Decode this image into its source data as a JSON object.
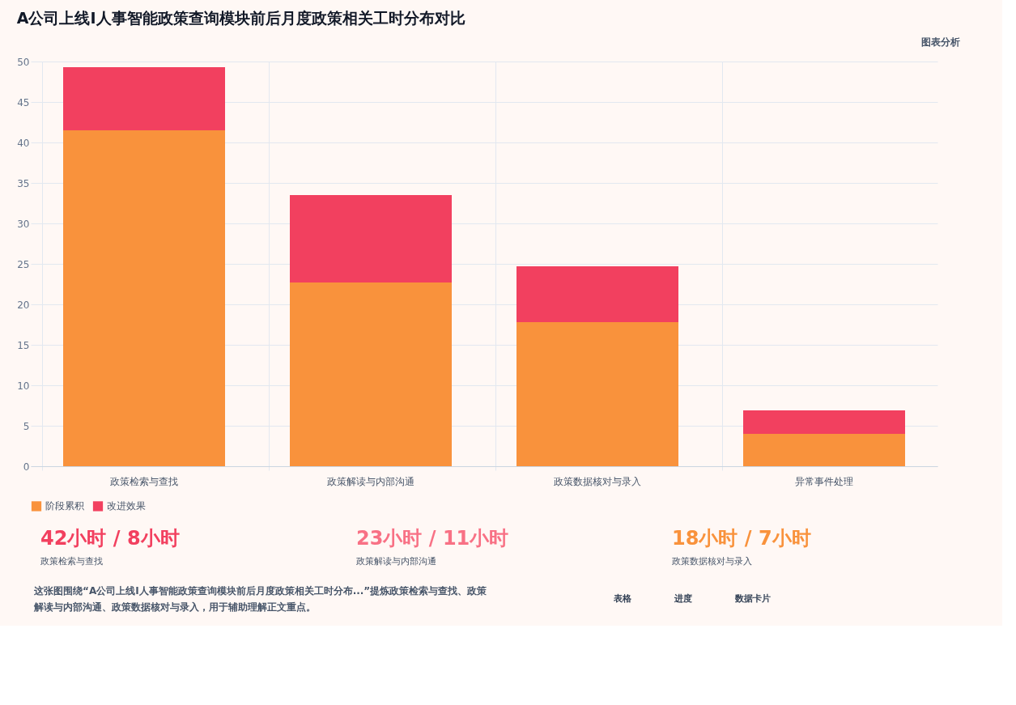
{
  "chart_data": {
    "type": "bar",
    "title": "A公司上线I人事智能政策查询模块前后月度政策相关工时分布对比",
    "categories": [
      "政策检索与查找",
      "政策解读与内部沟通",
      "政策数据核对与录入",
      "异常事件处理"
    ],
    "stacked": true,
    "series": [
      {
        "name": "阶段累积",
        "color": "#f9923c",
        "values": [
          41.5,
          22.7,
          17.8,
          4.0
        ]
      },
      {
        "name": "改进效果",
        "color": "#f2405f",
        "values": [
          7.8,
          10.8,
          6.9,
          2.9
        ]
      }
    ],
    "ylim": [
      0,
      50
    ],
    "yticks": [
      0,
      5,
      10,
      15,
      20,
      25,
      30,
      35,
      40,
      45,
      50
    ],
    "grid": true,
    "legend": "bottom",
    "annotations": [
      "图表分析",
      "42小时 / 8小时",
      "政策检索与查找",
      "23小时 / 11小时",
      "政策解读与内部沟通",
      "18小时 / 7小时",
      "政策数据核对与录入",
      "这张图围绕“A公司上线I人事智能政策查询模块前后月度政策相关工时分布...”提炼政策检索与查找、政策解读与内部沟通、政策数据核对与录入，用于辅助理解正文重点。",
      "表格",
      "进度",
      "数据卡片"
    ]
  }
}
